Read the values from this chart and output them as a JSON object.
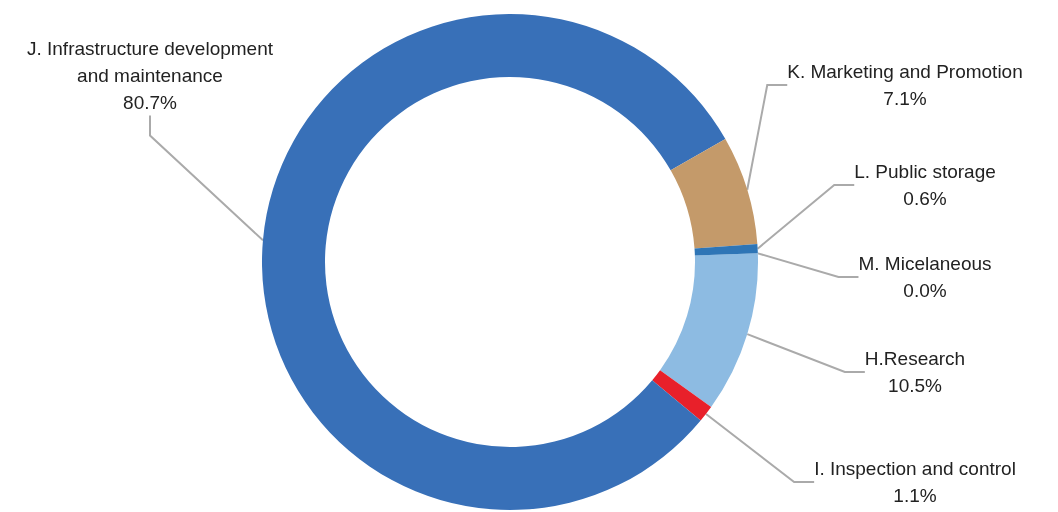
{
  "chart_data": {
    "type": "donut",
    "categories": [
      "H.Research",
      "I. Inspection and control",
      "J. Infrastructure development\nand maintenance",
      "K. Marketing and Promotion",
      "L. Public storage",
      "M. Micelaneous"
    ],
    "values": [
      10.5,
      1.1,
      80.7,
      7.1,
      0.6,
      0.0
    ],
    "colors": [
      "#8dbbe2",
      "#e8202a",
      "#3870b8",
      "#c49a6a",
      "#2e75b6",
      "#7f7f7f"
    ],
    "value_labels": [
      "10.5%",
      "1.1%",
      "80.7%",
      "7.1%",
      "0.6%",
      "0.0%"
    ],
    "legend": false
  }
}
